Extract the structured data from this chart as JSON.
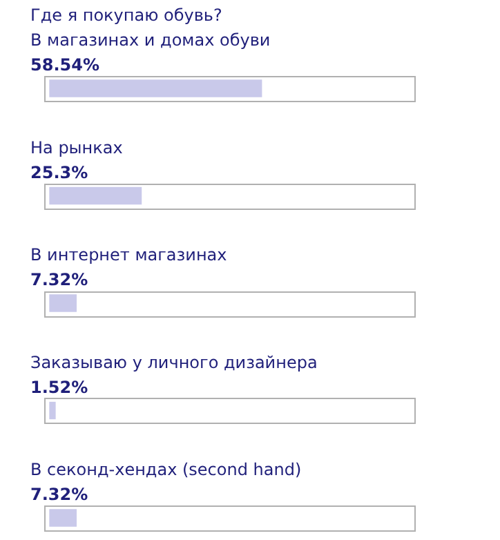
{
  "chart_data": {
    "type": "bar",
    "orientation": "horizontal",
    "title": "Где я покупаю обувь?",
    "categories": [
      "В магазинах и домах обуви",
      "На рынках",
      "В интернет магазинах",
      "Заказываю у личного дизайнера",
      "В секонд-хендах (second hand)"
    ],
    "values": [
      58.54,
      25.3,
      7.32,
      1.52,
      7.32
    ],
    "value_labels": [
      "58.54%",
      "25.3%",
      "7.32%",
      "1.52%",
      "7.32%"
    ],
    "color": "#c9c9ea"
  }
}
